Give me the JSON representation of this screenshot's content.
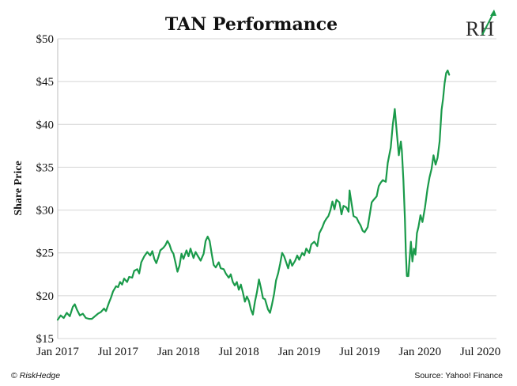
{
  "chart_data": {
    "type": "line",
    "title": "TAN Performance",
    "ylabel": "Share Price",
    "xlabel": "",
    "ylim": [
      15,
      50
    ],
    "y_ticks": [
      15,
      20,
      25,
      30,
      35,
      40,
      45,
      50
    ],
    "y_tick_labels": [
      "$15",
      "$20",
      "$25",
      "$30",
      "$35",
      "$40",
      "$45",
      "$50"
    ],
    "x_ticks": [
      {
        "label": "Jan 2017",
        "t": 0
      },
      {
        "label": "Jul 2017",
        "t": 6
      },
      {
        "label": "Jan 2018",
        "t": 12
      },
      {
        "label": "Jul 2018",
        "t": 18
      },
      {
        "label": "Jan 2019",
        "t": 24
      },
      {
        "label": "Jul 2019",
        "t": 30
      },
      {
        "label": "Jan 2020",
        "t": 36
      },
      {
        "label": "Jul 2020",
        "t": 42
      }
    ],
    "x_range_months": [
      0,
      43.6
    ],
    "grid": true,
    "line_color": "#1a9a4a",
    "series": [
      {
        "values": [
          [
            0,
            17.2
          ],
          [
            0.3,
            17.7
          ],
          [
            0.6,
            17.4
          ],
          [
            0.9,
            18.0
          ],
          [
            1.2,
            17.6
          ],
          [
            1.5,
            18.7
          ],
          [
            1.7,
            19.0
          ],
          [
            1.9,
            18.4
          ],
          [
            2.2,
            17.7
          ],
          [
            2.5,
            17.9
          ],
          [
            2.8,
            17.4
          ],
          [
            3.1,
            17.3
          ],
          [
            3.4,
            17.3
          ],
          [
            3.7,
            17.6
          ],
          [
            4.0,
            17.9
          ],
          [
            4.3,
            18.1
          ],
          [
            4.6,
            18.5
          ],
          [
            4.8,
            18.2
          ],
          [
            5.1,
            19.2
          ],
          [
            5.3,
            19.8
          ],
          [
            5.5,
            20.5
          ],
          [
            5.8,
            21.1
          ],
          [
            6.0,
            21.0
          ],
          [
            6.2,
            21.6
          ],
          [
            6.4,
            21.3
          ],
          [
            6.6,
            22.0
          ],
          [
            6.9,
            21.6
          ],
          [
            7.1,
            22.2
          ],
          [
            7.4,
            22.1
          ],
          [
            7.6,
            22.9
          ],
          [
            7.9,
            23.1
          ],
          [
            8.1,
            22.6
          ],
          [
            8.3,
            23.9
          ],
          [
            8.6,
            24.6
          ],
          [
            8.9,
            25.1
          ],
          [
            9.2,
            24.7
          ],
          [
            9.4,
            25.2
          ],
          [
            9.6,
            24.3
          ],
          [
            9.8,
            23.8
          ],
          [
            10.0,
            24.5
          ],
          [
            10.2,
            25.3
          ],
          [
            10.5,
            25.6
          ],
          [
            10.7,
            25.9
          ],
          [
            10.9,
            26.4
          ],
          [
            11.1,
            26.0
          ],
          [
            11.3,
            25.3
          ],
          [
            11.5,
            24.9
          ],
          [
            11.7,
            23.9
          ],
          [
            11.9,
            22.8
          ],
          [
            12.1,
            23.5
          ],
          [
            12.3,
            24.9
          ],
          [
            12.5,
            24.3
          ],
          [
            12.8,
            25.3
          ],
          [
            13.0,
            24.6
          ],
          [
            13.2,
            25.5
          ],
          [
            13.5,
            24.4
          ],
          [
            13.7,
            25.1
          ],
          [
            13.9,
            24.7
          ],
          [
            14.2,
            24.1
          ],
          [
            14.5,
            24.9
          ],
          [
            14.7,
            26.4
          ],
          [
            14.9,
            26.9
          ],
          [
            15.1,
            26.4
          ],
          [
            15.3,
            24.9
          ],
          [
            15.5,
            23.6
          ],
          [
            15.7,
            23.3
          ],
          [
            16.0,
            23.9
          ],
          [
            16.2,
            23.2
          ],
          [
            16.5,
            23.1
          ],
          [
            16.7,
            22.6
          ],
          [
            17.0,
            22.1
          ],
          [
            17.2,
            22.5
          ],
          [
            17.4,
            21.6
          ],
          [
            17.6,
            21.2
          ],
          [
            17.8,
            21.6
          ],
          [
            18.0,
            20.7
          ],
          [
            18.2,
            21.3
          ],
          [
            18.4,
            20.4
          ],
          [
            18.6,
            19.3
          ],
          [
            18.8,
            19.9
          ],
          [
            19.0,
            19.4
          ],
          [
            19.2,
            18.4
          ],
          [
            19.4,
            17.8
          ],
          [
            19.6,
            19.3
          ],
          [
            19.8,
            20.4
          ],
          [
            20.0,
            21.9
          ],
          [
            20.2,
            20.9
          ],
          [
            20.4,
            19.7
          ],
          [
            20.6,
            19.6
          ],
          [
            20.9,
            18.4
          ],
          [
            21.1,
            18.0
          ],
          [
            21.3,
            19.0
          ],
          [
            21.5,
            20.2
          ],
          [
            21.7,
            21.8
          ],
          [
            21.9,
            22.6
          ],
          [
            22.1,
            23.7
          ],
          [
            22.3,
            25.0
          ],
          [
            22.5,
            24.6
          ],
          [
            22.7,
            23.9
          ],
          [
            22.9,
            23.2
          ],
          [
            23.1,
            24.2
          ],
          [
            23.3,
            23.5
          ],
          [
            23.6,
            24.1
          ],
          [
            23.8,
            24.7
          ],
          [
            24.0,
            24.2
          ],
          [
            24.3,
            25.0
          ],
          [
            24.5,
            24.7
          ],
          [
            24.7,
            25.5
          ],
          [
            25.0,
            25.0
          ],
          [
            25.2,
            26.0
          ],
          [
            25.5,
            26.3
          ],
          [
            25.8,
            25.8
          ],
          [
            26.0,
            27.3
          ],
          [
            26.3,
            28.0
          ],
          [
            26.5,
            28.6
          ],
          [
            26.7,
            29.0
          ],
          [
            26.9,
            29.3
          ],
          [
            27.1,
            30.0
          ],
          [
            27.3,
            31.0
          ],
          [
            27.5,
            30.1
          ],
          [
            27.7,
            31.2
          ],
          [
            28.0,
            30.9
          ],
          [
            28.2,
            29.5
          ],
          [
            28.4,
            30.5
          ],
          [
            28.7,
            30.3
          ],
          [
            28.9,
            29.8
          ],
          [
            29.0,
            32.3
          ],
          [
            29.2,
            30.8
          ],
          [
            29.4,
            29.3
          ],
          [
            29.7,
            29.1
          ],
          [
            29.9,
            28.6
          ],
          [
            30.1,
            28.2
          ],
          [
            30.3,
            27.6
          ],
          [
            30.5,
            27.4
          ],
          [
            30.8,
            28.0
          ],
          [
            31.0,
            29.4
          ],
          [
            31.2,
            30.9
          ],
          [
            31.4,
            31.2
          ],
          [
            31.7,
            31.6
          ],
          [
            31.9,
            32.8
          ],
          [
            32.1,
            33.2
          ],
          [
            32.3,
            33.5
          ],
          [
            32.6,
            33.3
          ],
          [
            32.8,
            35.5
          ],
          [
            33.1,
            37.3
          ],
          [
            33.3,
            40.0
          ],
          [
            33.5,
            41.8
          ],
          [
            33.7,
            39.0
          ],
          [
            33.9,
            36.4
          ],
          [
            34.1,
            38.0
          ],
          [
            34.2,
            37.0
          ],
          [
            34.35,
            33.5
          ],
          [
            34.5,
            29.0
          ],
          [
            34.6,
            25.0
          ],
          [
            34.7,
            22.3
          ],
          [
            34.85,
            22.3
          ],
          [
            34.95,
            24.0
          ],
          [
            35.1,
            26.3
          ],
          [
            35.25,
            24.0
          ],
          [
            35.4,
            25.5
          ],
          [
            35.55,
            24.8
          ],
          [
            35.7,
            27.3
          ],
          [
            35.85,
            28.0
          ],
          [
            36.05,
            29.4
          ],
          [
            36.25,
            28.6
          ],
          [
            36.5,
            30.3
          ],
          [
            36.75,
            32.5
          ],
          [
            36.95,
            33.8
          ],
          [
            37.15,
            34.8
          ],
          [
            37.35,
            36.4
          ],
          [
            37.55,
            35.3
          ],
          [
            37.75,
            36.1
          ],
          [
            37.95,
            38.0
          ],
          [
            38.15,
            41.7
          ],
          [
            38.3,
            43.0
          ],
          [
            38.45,
            44.8
          ],
          [
            38.6,
            46.0
          ],
          [
            38.75,
            46.3
          ],
          [
            38.9,
            45.8
          ]
        ]
      }
    ]
  },
  "footer": {
    "copyright_symbol": "©",
    "copyright_brand": "RiskHedge",
    "source": "Source: Yahoo! Finance"
  },
  "logo": {
    "letters": "RH",
    "accent_color": "#1a9a4a"
  }
}
